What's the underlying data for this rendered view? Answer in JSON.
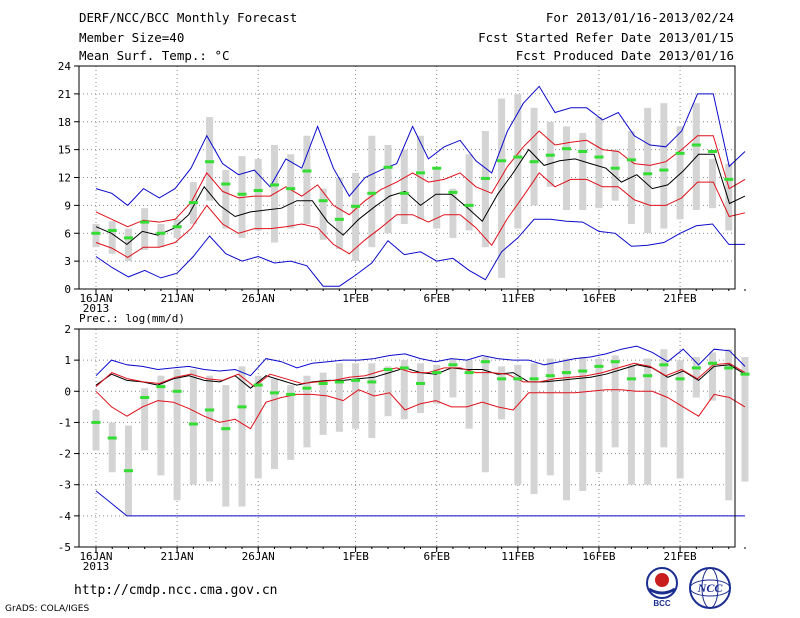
{
  "header": {
    "title": "DERF/NCC/BCC Monthly Forecast",
    "member_size": "Member Size=40",
    "variable": "Mean Surf. Temp.: °C",
    "period": "For 2013/01/16-2013/02/24",
    "started": "Fcst Started Refer Date 2013/01/15",
    "produced": "Fcst Produced Date 2013/01/16"
  },
  "footer": {
    "url": "http://cmdp.ncc.cma.gov.cn",
    "credit": "GrADS: COLA/IGES",
    "logo_left": "BCC",
    "logo_right": "NCC"
  },
  "colors": {
    "box": "#d4d4d4",
    "median": "#33dd33",
    "mean": "#000000",
    "std_band": "#e0101a",
    "extreme": "#0b0bcc",
    "grid": "#888888"
  },
  "chart_data": [
    {
      "type": "box-ensemble",
      "title": "Mean Surf. Temp.: °C",
      "ylabel": "",
      "ylim": [
        0,
        24
      ],
      "ytick_labels": [
        "0",
        "3",
        "6",
        "9",
        "12",
        "15",
        "18",
        "21",
        "24"
      ],
      "x_tick_days": [
        0,
        5,
        10,
        16,
        21,
        26,
        31,
        36
      ],
      "x_tick_labels": [
        "16JAN",
        "21JAN",
        "26JAN",
        "1FEB",
        "6FEB",
        "11FEB",
        "16FEB",
        "21FEB"
      ],
      "x_year_label": "2013",
      "days": 40,
      "series": [
        {
          "name": "max",
          "values": [
            10.8,
            10.3,
            9.0,
            10.8,
            9.8,
            10.8,
            13.0,
            16.5,
            13.5,
            12.3,
            12.8,
            11.0,
            14.0,
            13.0,
            17.5,
            13.0,
            10.0,
            12.0,
            12.8,
            13.5,
            17.5,
            14.0,
            15.3,
            16.0,
            13.8,
            12.5,
            17.0,
            20.0,
            21.8,
            19.0,
            19.5,
            19.5,
            18.2,
            19.0,
            16.5,
            15.5,
            15.3,
            17.0,
            21.0,
            21.0,
            13.2,
            14.8
          ]
        },
        {
          "name": "std_upper",
          "values": [
            8.3,
            7.5,
            6.7,
            7.4,
            7.2,
            7.5,
            9.3,
            12.5,
            10.5,
            9.8,
            10.0,
            10.0,
            11.0,
            10.0,
            11.2,
            9.0,
            8.0,
            9.5,
            10.7,
            11.5,
            12.5,
            11.5,
            11.8,
            12.5,
            11.0,
            10.3,
            13.2,
            15.3,
            17.0,
            15.5,
            15.8,
            16.0,
            15.0,
            14.8,
            13.5,
            13.3,
            13.7,
            15.0,
            16.5,
            16.5,
            10.8,
            11.8
          ]
        },
        {
          "name": "mean",
          "values": [
            6.7,
            6.0,
            4.8,
            6.2,
            5.8,
            6.5,
            8.0,
            11.0,
            9.0,
            7.8,
            8.3,
            8.5,
            8.7,
            9.5,
            9.5,
            7.2,
            5.8,
            7.5,
            8.8,
            10.0,
            10.5,
            9.0,
            10.2,
            10.2,
            8.8,
            7.3,
            10.2,
            12.5,
            15.0,
            13.3,
            13.8,
            14.0,
            13.5,
            13.0,
            11.5,
            12.3,
            10.8,
            11.2,
            12.7,
            14.5,
            14.5,
            9.2,
            10.0
          ]
        },
        {
          "name": "std_lower",
          "values": [
            5.0,
            4.4,
            3.4,
            4.5,
            4.5,
            5.0,
            6.5,
            9.0,
            7.0,
            6.0,
            6.5,
            6.5,
            6.7,
            7.0,
            6.6,
            4.8,
            3.8,
            5.3,
            6.6,
            8.0,
            8.0,
            7.2,
            8.0,
            8.0,
            6.6,
            4.7,
            7.6,
            10.0,
            12.5,
            11.0,
            11.8,
            11.8,
            11.0,
            11.0,
            9.6,
            9.0,
            9.0,
            9.8,
            11.5,
            11.5,
            7.8,
            8.2
          ]
        },
        {
          "name": "min",
          "values": [
            3.5,
            2.3,
            1.3,
            2.0,
            1.2,
            1.7,
            3.5,
            5.7,
            3.8,
            3.0,
            3.5,
            2.8,
            3.0,
            2.5,
            0.3,
            0.3,
            1.5,
            2.8,
            5.2,
            3.7,
            4.0,
            3.0,
            3.3,
            2.0,
            1.0,
            4.0,
            5.5,
            7.5,
            7.5,
            7.3,
            7.2,
            6.2,
            6.0,
            4.6,
            4.7,
            5.0,
            6.0,
            6.8,
            7.0,
            4.8,
            4.8
          ]
        },
        {
          "name": "median",
          "values": [
            6.0,
            6.3,
            5.5,
            7.2,
            6.0,
            6.7,
            9.3,
            13.7,
            11.3,
            10.2,
            10.6,
            11.2,
            10.8,
            12.7,
            9.5,
            7.5,
            8.9,
            10.3,
            13.1,
            10.3,
            12.5,
            13.0,
            10.4,
            9.0,
            11.9,
            13.8,
            14.2,
            13.7,
            14.4,
            15.1,
            14.8,
            14.2,
            13.0,
            13.9,
            12.4,
            12.8,
            14.6,
            15.5,
            14.8,
            11.8
          ]
        }
      ],
      "boxes_lower": [
        4.5,
        3.8,
        3.0,
        4.2,
        4.5,
        5.5,
        7.0,
        9.5,
        6.5,
        5.5,
        6.3,
        5.0,
        6.5,
        7.0,
        5.3,
        4.3,
        3.0,
        4.5,
        6.0,
        7.0,
        7.5,
        6.5,
        5.5,
        6.3,
        4.5,
        1.2,
        6.5,
        9.0,
        11.0,
        8.5,
        8.5,
        8.7,
        9.5,
        7.0,
        6.0,
        6.5,
        7.5,
        8.5,
        8.7,
        6.3,
        8.0
      ],
      "boxes_upper": [
        7.0,
        7.3,
        6.5,
        8.7,
        7.0,
        7.5,
        11.5,
        18.5,
        12.8,
        14.3,
        14.0,
        15.5,
        14.5,
        16.5,
        10.8,
        12.0,
        12.5,
        16.5,
        15.5,
        15.0,
        16.5,
        13.0,
        10.8,
        14.5,
        17.0,
        20.5,
        21.0,
        19.5,
        18.0,
        17.5,
        16.8,
        18.5,
        15.0,
        17.0,
        19.5,
        20.0,
        17.5,
        20.0,
        14.0,
        13.5
      ]
    },
    {
      "type": "box-ensemble",
      "title": "Prec.: log(mm/d)",
      "ylabel": "",
      "ylim": [
        -5,
        2
      ],
      "ytick_labels": [
        "-5",
        "-4",
        "-3",
        "-2",
        "-1",
        "0",
        "1",
        "2"
      ],
      "x_tick_days": [
        0,
        5,
        10,
        16,
        21,
        26,
        31,
        36
      ],
      "x_tick_labels": [
        "16JAN",
        "21JAN",
        "26JAN",
        "1FEB",
        "6FEB",
        "11FEB",
        "16FEB",
        "21FEB"
      ],
      "x_year_label": "2013",
      "days": 40,
      "series": [
        {
          "name": "max",
          "values": [
            0.5,
            1.0,
            0.85,
            0.8,
            0.7,
            0.75,
            0.8,
            0.7,
            0.65,
            0.7,
            0.5,
            1.05,
            0.95,
            0.75,
            0.9,
            0.95,
            1.0,
            1.0,
            1.05,
            1.15,
            1.2,
            1.05,
            0.95,
            1.05,
            1.0,
            1.15,
            1.05,
            1.0,
            1.0,
            0.85,
            0.95,
            1.05,
            1.1,
            1.2,
            1.35,
            1.45,
            1.25,
            0.95,
            1.35,
            0.85,
            1.35,
            1.3,
            0.8
          ]
        },
        {
          "name": "mean",
          "values": [
            0.2,
            0.55,
            0.35,
            0.3,
            0.2,
            0.4,
            0.5,
            0.35,
            0.3,
            0.5,
            0.1,
            0.5,
            0.35,
            0.2,
            0.3,
            0.35,
            0.35,
            0.4,
            0.45,
            0.6,
            0.75,
            0.6,
            0.55,
            0.75,
            0.7,
            0.7,
            0.55,
            0.6,
            0.3,
            0.3,
            0.35,
            0.4,
            0.45,
            0.55,
            0.7,
            0.85,
            0.75,
            0.45,
            0.65,
            0.35,
            0.8,
            0.85,
            0.55
          ]
        },
        {
          "name": "std_upper",
          "values": [
            0.15,
            0.6,
            0.4,
            0.3,
            0.25,
            0.45,
            0.55,
            0.4,
            0.35,
            0.55,
            0.15,
            0.55,
            0.4,
            0.25,
            0.3,
            0.35,
            0.45,
            0.5,
            0.65,
            0.75,
            0.6,
            0.6,
            0.75,
            0.75,
            0.6,
            0.6,
            0.55,
            0.3,
            0.3,
            0.4,
            0.45,
            0.5,
            0.6,
            0.75,
            0.9,
            0.8,
            0.5,
            0.7,
            0.4,
            0.85,
            0.9,
            0.6
          ]
        },
        {
          "name": "std_lower",
          "values": [
            0.0,
            -0.5,
            -0.8,
            -0.5,
            -0.3,
            -0.35,
            -0.55,
            -0.8,
            -1.0,
            -0.9,
            -1.2,
            -0.35,
            -0.2,
            -0.1,
            -0.1,
            -0.15,
            -0.3,
            0.05,
            -0.15,
            -0.05,
            -0.6,
            -0.4,
            -0.3,
            -0.5,
            -0.5,
            -0.35,
            -0.5,
            -0.6,
            -0.05,
            -0.05,
            -0.05,
            -0.05,
            0.0,
            0.05,
            0.05,
            0.0,
            0.0,
            -0.2,
            -0.5,
            -0.8,
            -0.1,
            -0.2,
            -0.5
          ]
        },
        {
          "name": "min",
          "values": [
            -3.2,
            -3.6,
            -4.0,
            -4.0,
            -4.0,
            -4.0,
            -4.0,
            -4.0,
            -4.0,
            -4.0,
            -4.0,
            -4.0,
            -4.0,
            -4.0,
            -4.0,
            -4.0,
            -4.0,
            -4.0,
            -4.0,
            -4.0,
            -4.0,
            -4.0,
            -4.0,
            -4.0,
            -4.0,
            -4.0,
            -4.0,
            -4.0,
            -4.0,
            -4.0,
            -4.0,
            -4.0,
            -4.0,
            -4.0,
            -4.0,
            -4.0,
            -4.0,
            -4.0,
            -4.0,
            -4.0,
            -4.0,
            -4.0,
            -4.0
          ]
        },
        {
          "name": "median",
          "values": [
            -1.0,
            -1.5,
            -2.55,
            -0.2,
            0.15,
            0.0,
            -1.05,
            -0.6,
            -1.2,
            -0.5,
            0.2,
            -0.05,
            -0.1,
            0.1,
            0.25,
            0.3,
            0.35,
            0.3,
            0.7,
            0.75,
            0.25,
            0.6,
            0.85,
            0.6,
            0.95,
            0.4,
            0.4,
            0.4,
            0.5,
            0.6,
            0.65,
            0.8,
            0.95,
            0.4,
            0.5,
            0.85,
            0.4,
            0.75,
            0.9,
            0.75,
            0.55
          ]
        }
      ],
      "boxes_lower": [
        -1.9,
        -2.6,
        -4.0,
        -1.9,
        -2.7,
        -3.5,
        -3.0,
        -2.9,
        -3.7,
        -3.7,
        -2.8,
        -2.5,
        -2.2,
        -1.8,
        -1.4,
        -1.3,
        -1.2,
        -1.5,
        -0.8,
        -0.9,
        -0.7,
        -0.4,
        -0.2,
        -1.2,
        -2.6,
        -0.9,
        -3.0,
        -3.3,
        -2.7,
        -3.5,
        -3.2,
        -2.6,
        -1.8,
        -3.0,
        -3.0,
        -1.8,
        -2.8,
        -0.2,
        -0.3,
        -3.5,
        -2.9
      ],
      "boxes_upper": [
        -0.6,
        -1.0,
        -1.1,
        0.1,
        0.5,
        0.7,
        0.7,
        0.5,
        0.2,
        0.8,
        0.5,
        0.4,
        0.2,
        0.5,
        0.6,
        0.9,
        0.9,
        0.9,
        0.8,
        1.0,
        0.9,
        0.85,
        1.05,
        1.0,
        1.1,
        0.8,
        0.85,
        0.9,
        1.05,
        1.05,
        1.1,
        1.05,
        1.15,
        0.85,
        1.05,
        1.35,
        1.0,
        1.1,
        1.25,
        1.35,
        1.1
      ]
    }
  ]
}
